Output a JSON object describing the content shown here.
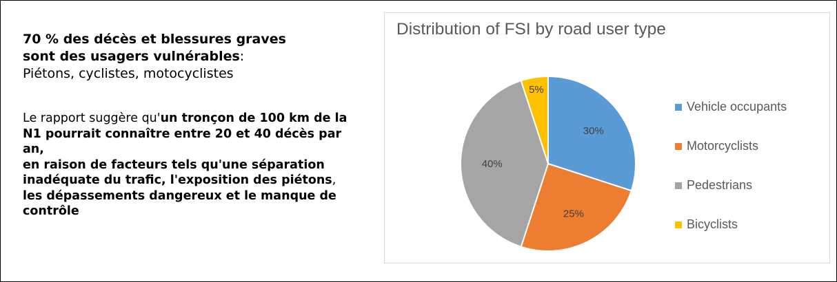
{
  "left_panel": {
    "heading_line1": "70 % des décès et blessures graves",
    "heading_line2": "sont des usagers vulnérables",
    "heading_colon": ":",
    "subtitle": "Piétons, cyclistes, motocyclistes",
    "para_intro": "Le rapport suggère qu'",
    "para_bold": "un tronçon de 100 km de la N1 pourrait connaître entre 20 et 40 décès par an,",
    "para_bold2": "en raison de facteurs tels qu'une séparation inadéquate du trafic, l'exposition des piétons",
    "para_tail": ",",
    "para_bold3": "les dépassements dangereux et le manque de contrôle"
  },
  "chart_data": {
    "type": "pie",
    "title": "Distribution of FSI by road user type",
    "categories": [
      "Vehicle occupants",
      "Motorcyclists",
      "Pedestrians",
      "Bicyclists"
    ],
    "values": [
      30,
      25,
      40,
      5
    ],
    "data_labels": [
      "30%",
      "25%",
      "40%",
      "5%"
    ],
    "colors": [
      "#5b9bd5",
      "#ed7d31",
      "#a5a5a5",
      "#ffc000"
    ],
    "legend_position": "right",
    "start_angle": "top, clockwise"
  }
}
